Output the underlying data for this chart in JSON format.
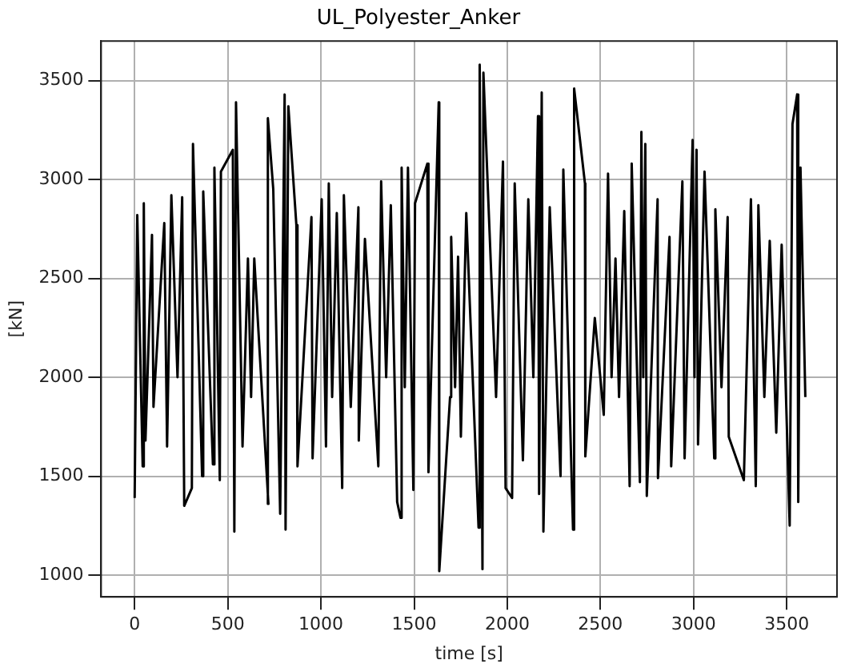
{
  "chart_data": {
    "type": "line",
    "title": "UL_Polyester_Anker",
    "xlabel": "time [s]",
    "ylabel": "[kN]",
    "x": [
      0,
      14,
      43,
      49,
      58,
      93,
      101,
      159,
      174,
      197,
      230,
      255,
      266,
      307,
      313,
      362,
      368,
      420,
      428,
      457,
      463,
      527,
      535,
      544,
      579,
      608,
      625,
      642,
      718,
      715,
      744,
      781,
      805,
      810,
      825,
      868,
      874,
      949,
      955,
      1004,
      1027,
      1042,
      1060,
      1085,
      1114,
      1123,
      1160,
      1201,
      1203,
      1236,
      1308,
      1323,
      1350,
      1375,
      1409,
      1427,
      1433,
      1450,
      1467,
      1496,
      1505,
      1571,
      1577,
      1632,
      1635,
      1693,
      1699,
      1720,
      1736,
      1751,
      1780,
      1846,
      1852,
      1867,
      1872,
      1896,
      1940,
      1977,
      1991,
      2026,
      2040,
      2084,
      2113,
      2140,
      2165,
      2171,
      2185,
      2194,
      2228,
      2286,
      2301,
      2353,
      2359,
      2417,
      2419,
      2470,
      2518,
      2541,
      2560,
      2581,
      2600,
      2628,
      2657,
      2668,
      2712,
      2720,
      2730,
      2741,
      2749,
      2807,
      2809,
      2871,
      2880,
      2940,
      2952,
      2995,
      3005,
      3016,
      3024,
      3059,
      3111,
      3117,
      3150,
      3183,
      3189,
      3270,
      3308,
      3334,
      3348,
      3380,
      3409,
      3444,
      3473,
      3516,
      3531,
      3556,
      3562,
      3574,
      3600
    ],
    "values": [
      1390,
      2820,
      1550,
      2880,
      1680,
      2720,
      1850,
      2780,
      1650,
      2920,
      2000,
      2910,
      1350,
      1440,
      3180,
      1500,
      2940,
      1560,
      3060,
      1480,
      3040,
      3150,
      1220,
      3390,
      1650,
      2600,
      1900,
      2600,
      1360,
      3310,
      2950,
      1310,
      3430,
      1230,
      3370,
      2770,
      1550,
      2810,
      1590,
      2900,
      1650,
      2980,
      1900,
      2830,
      1440,
      2920,
      1850,
      2860,
      1680,
      2700,
      1550,
      2990,
      2000,
      2870,
      1370,
      1290,
      3060,
      1950,
      3060,
      1430,
      2880,
      3080,
      1520,
      3390,
      1020,
      1900,
      2710,
      1950,
      2610,
      1700,
      2830,
      1240,
      3580,
      1030,
      3540,
      2950,
      1900,
      3090,
      1440,
      1390,
      2980,
      1580,
      2900,
      2000,
      3320,
      1410,
      3440,
      1220,
      2860,
      1500,
      3050,
      1230,
      3460,
      2980,
      1600,
      2300,
      1810,
      3030,
      2000,
      2600,
      1900,
      2840,
      1450,
      3080,
      1470,
      3240,
      2000,
      3180,
      1400,
      2900,
      1490,
      2710,
      1550,
      2990,
      1590,
      3200,
      2000,
      3150,
      1660,
      3040,
      1590,
      2850,
      1950,
      2810,
      1700,
      1480,
      2900,
      1450,
      2870,
      1900,
      2690,
      1720,
      2670,
      1250,
      3280,
      3430,
      1370,
      3060,
      1900
    ],
    "color": "#000000",
    "xlim": [
      -180,
      3770
    ],
    "ylim": [
      890,
      3700
    ],
    "xticks": [
      0,
      500,
      1000,
      1500,
      2000,
      2500,
      3000,
      3500
    ],
    "yticks": [
      1000,
      1500,
      2000,
      2500,
      3000,
      3500
    ],
    "grid": true,
    "legend": false,
    "marker": "none",
    "line_style": "solid"
  }
}
